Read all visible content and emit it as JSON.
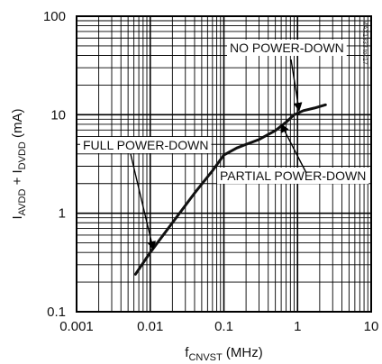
{
  "chart_data": {
    "type": "line",
    "title": "",
    "xlabel": {
      "main": "f",
      "sub": "CNVST",
      "unit": " (MHz)"
    },
    "ylabel": {
      "p1": "I",
      "s1": "AVDD",
      "p2": " + I",
      "s2": "DVDD",
      "p3": " (mA)"
    },
    "x_scale": "log",
    "y_scale": "log",
    "xlim": [
      0.001,
      10
    ],
    "ylim": [
      0.1,
      100
    ],
    "grid": true,
    "x_ticks": [
      {
        "value": 0.001,
        "label": "0.001"
      },
      {
        "value": 0.01,
        "label": "0.01"
      },
      {
        "value": 0.1,
        "label": "0.1"
      },
      {
        "value": 1,
        "label": "1"
      },
      {
        "value": 10,
        "label": "10"
      }
    ],
    "y_ticks": [
      {
        "value": 0.1,
        "label": "0.1"
      },
      {
        "value": 1,
        "label": "1"
      },
      {
        "value": 10,
        "label": "10"
      },
      {
        "value": 100,
        "label": "100"
      }
    ],
    "series": [
      {
        "color": "#111111",
        "x": [
          0.0063,
          0.01,
          0.02,
          0.04,
          0.07,
          0.1,
          0.15,
          0.2,
          0.3,
          0.5,
          0.7,
          0.9,
          1.2,
          1.7,
          2.4
        ],
        "y": [
          0.24,
          0.4,
          0.8,
          1.6,
          2.7,
          3.9,
          4.6,
          5.0,
          5.6,
          6.9,
          8.4,
          10.0,
          11.0,
          11.7,
          12.6
        ]
      }
    ],
    "annotations": [
      {
        "text": "NO POWER-DOWN",
        "point": [
          1.05,
          11.0
        ]
      },
      {
        "text": "FULL POWER-DOWN",
        "point": [
          0.011,
          0.43
        ]
      },
      {
        "text": "PARTIAL POWER-DOWN",
        "point": [
          0.6,
          8.0
        ]
      }
    ],
    "figure_id": "MAX1333 toc17"
  }
}
